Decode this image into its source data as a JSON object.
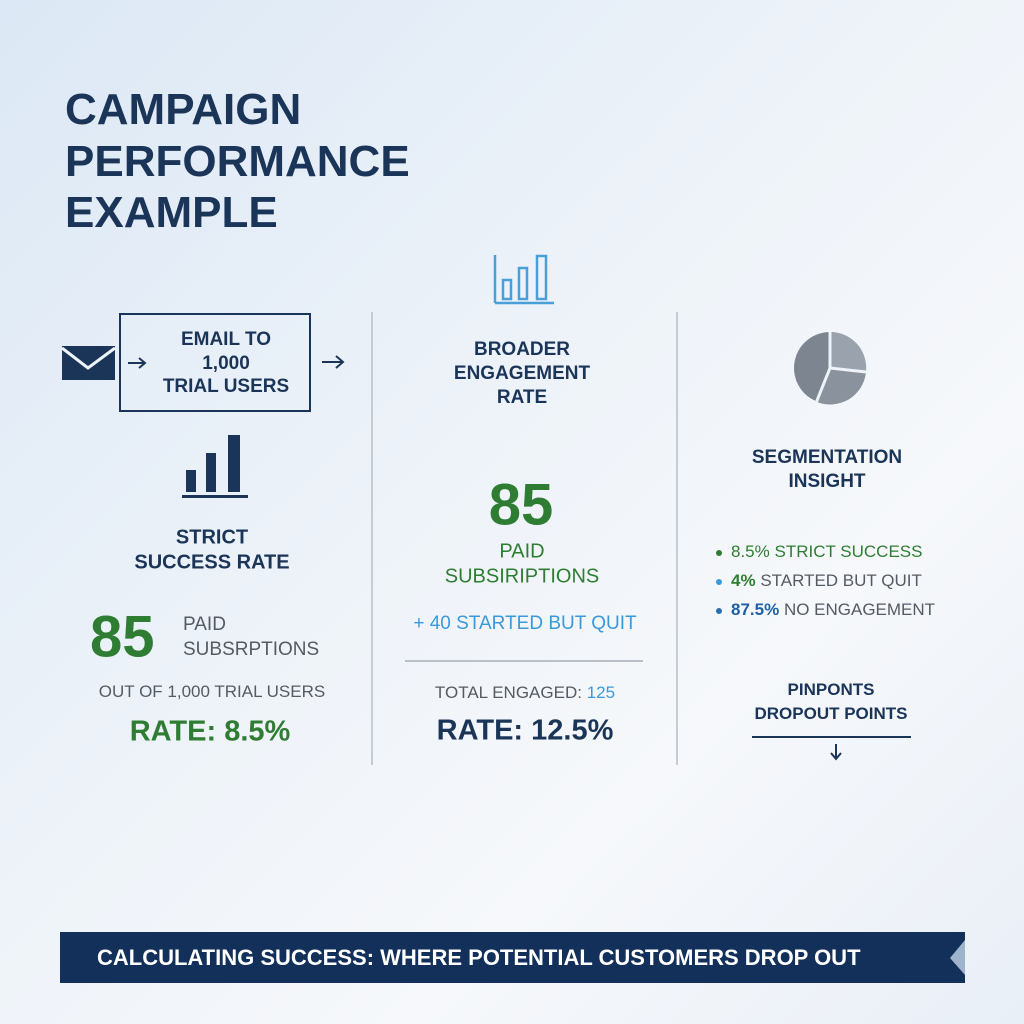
{
  "header": {
    "title_lines": [
      "CAMPAIGN",
      "PERFORMANCE",
      "EXAMPLE"
    ]
  },
  "strict": {
    "input_box": [
      "EMAIL TO",
      "1,000",
      "TRIAL USERS"
    ],
    "heading": [
      "STRICT",
      "SUCCESS RATE"
    ],
    "number": "85",
    "number_label": [
      "PAID",
      "SUBSRPTIONS"
    ],
    "note": "OUT OF 1,000 TRIAL USERS",
    "rate": "RATE: 8.5%"
  },
  "broader": {
    "heading": [
      "BROADER",
      "ENGAGEMENT",
      "RATE"
    ],
    "number": "85",
    "number_label": [
      "PAID",
      "SUBSIRIPTIONS"
    ],
    "note": "+ 40 STARTED BUT QUIT",
    "total_label": "TOTAL ENGAGED:",
    "total_value": "125",
    "rate": "RATE: 12.5%"
  },
  "segmentation": {
    "heading": [
      "SEGMENTATION",
      "INSIGHT"
    ],
    "segments": [
      {
        "value": "8.5%",
        "label": "STRICT SUCCESS"
      },
      {
        "value": "4%",
        "label": "STARTED BUT QUIT"
      },
      {
        "value": "87.5%",
        "label": "NO ENGAGEMENT"
      }
    ],
    "footer": [
      "PINPONTS",
      "DROPOUT POINTS"
    ]
  },
  "banner": "CALCULATING SUCCESS: WHERE POTENTIAL CUSTOMERS DROP OUT"
}
